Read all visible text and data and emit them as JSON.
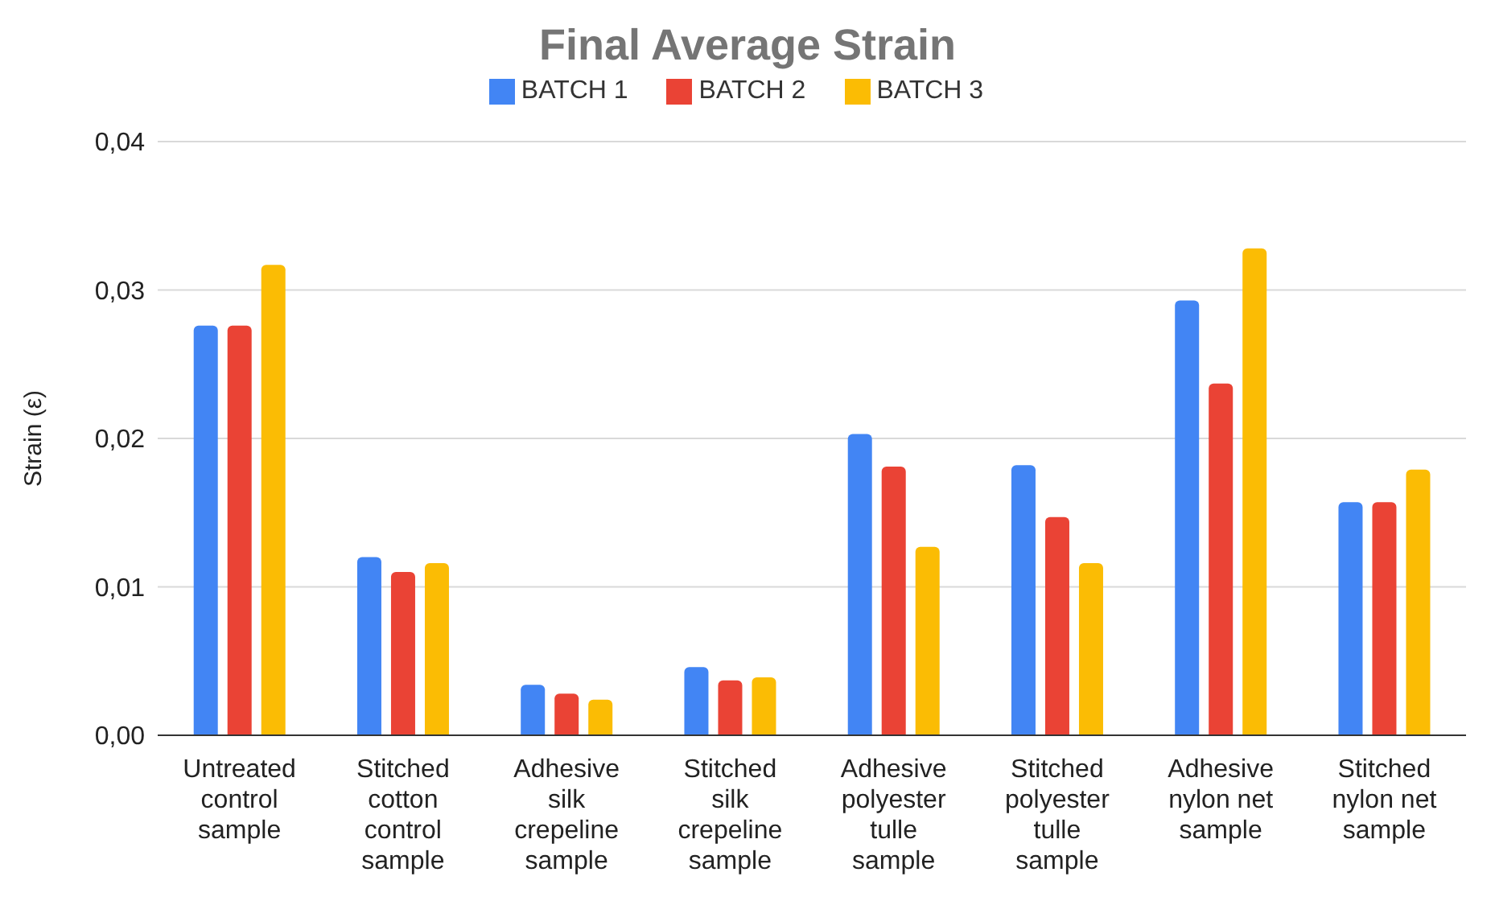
{
  "chart_data": {
    "type": "bar",
    "title": "Final Average Strain",
    "ylabel": "Strain (ε)",
    "categories": [
      "Untreated control sample",
      "Stitched cotton control sample",
      "Adhesive silk crepeline sample",
      "Stitched silk crepeline sample",
      "Adhesive polyester tulle sample",
      "Stitched polyester tulle sample",
      "Adhesive nylon net sample",
      "Stitched nylon net sample"
    ],
    "series": [
      {
        "name": "BATCH 1",
        "color": "#4285f4",
        "values": [
          0.0276,
          0.012,
          0.0034,
          0.0046,
          0.0203,
          0.0182,
          0.0293,
          0.0157
        ]
      },
      {
        "name": "BATCH 2",
        "color": "#ea4335",
        "values": [
          0.0276,
          0.011,
          0.0028,
          0.0037,
          0.0181,
          0.0147,
          0.0237,
          0.0157
        ]
      },
      {
        "name": "BATCH 3",
        "color": "#fbbc04",
        "values": [
          0.0317,
          0.0116,
          0.0024,
          0.0039,
          0.0127,
          0.0116,
          0.0328,
          0.0179
        ]
      }
    ],
    "ylim": [
      0,
      0.04
    ],
    "yticks": [
      {
        "value": 0,
        "label": "0,00"
      },
      {
        "value": 0.01,
        "label": "0,01"
      },
      {
        "value": 0.02,
        "label": "0,02"
      },
      {
        "value": 0.03,
        "label": "0,03"
      },
      {
        "value": 0.04,
        "label": "0,04"
      }
    ],
    "grid": "y",
    "legend": "top"
  }
}
